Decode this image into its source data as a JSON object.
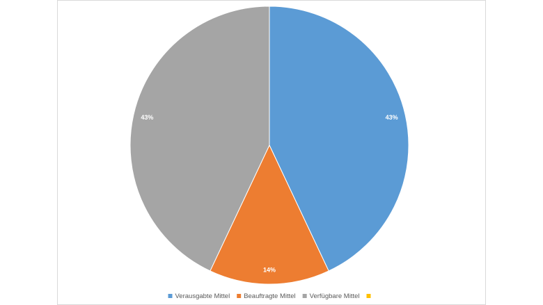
{
  "chart_data": {
    "type": "pie",
    "categories": [
      "Verausgabte Mittel",
      "Beauftragte Mittel",
      "Verfügbare Mittel",
      null
    ],
    "values": [
      43,
      14,
      43,
      0
    ],
    "value_labels": [
      "43%",
      "14%",
      "43%",
      null
    ],
    "colors": [
      "#5b9bd5",
      "#ed7d31",
      "#a5a5a5",
      "#ffc000"
    ],
    "legend": "bottom"
  }
}
